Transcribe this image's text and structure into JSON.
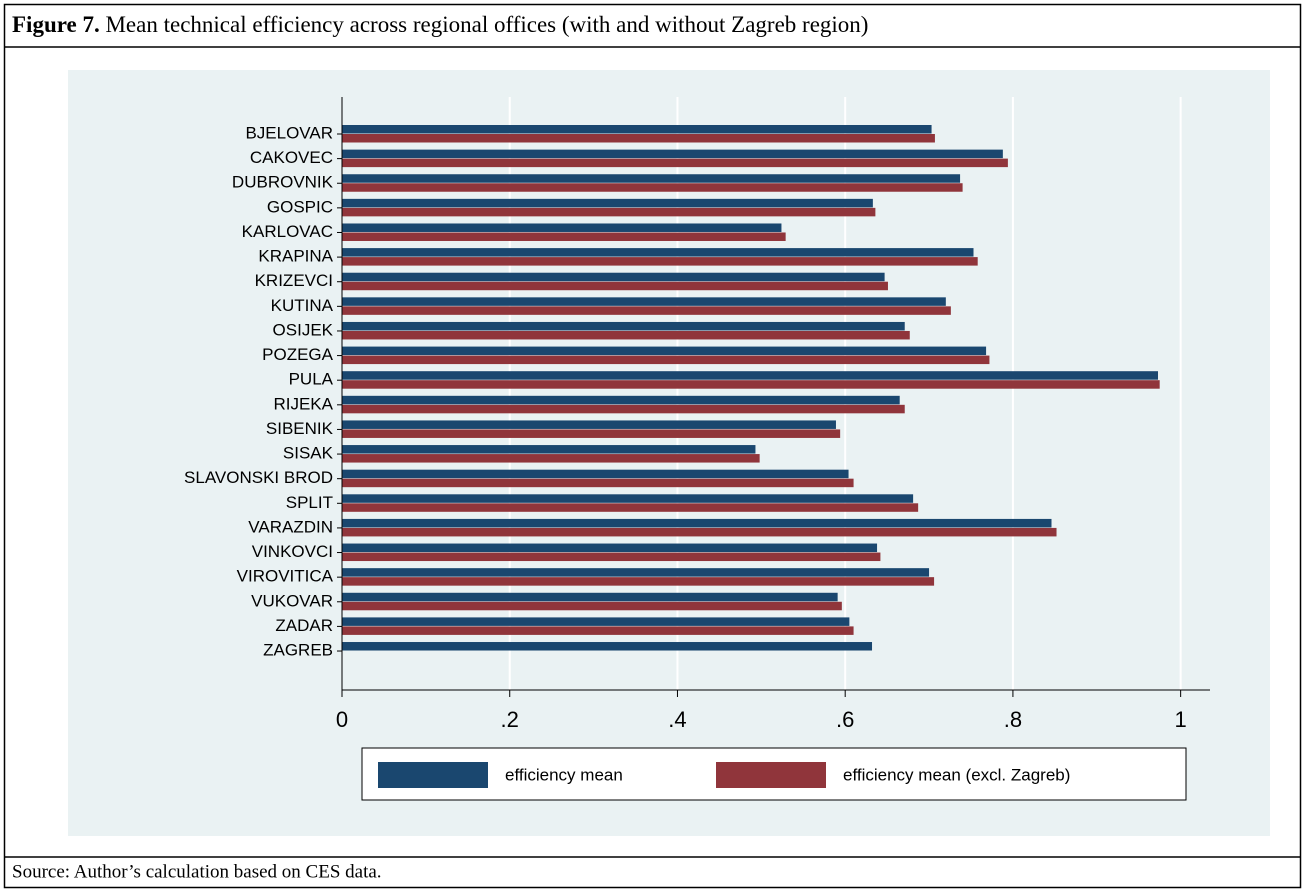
{
  "chart_data": {
    "type": "barh",
    "figure_label": "Figure 7.",
    "title": "Mean technical efficiency across regional offices (with and without Zagreb region)",
    "source": "Source: Author’s calculation based on CES data.",
    "categories": [
      "BJELOVAR",
      "CAKOVEC",
      "DUBROVNIK",
      "GOSPIC",
      "KARLOVAC",
      "KRAPINA",
      "KRIZEVCI",
      "KUTINA",
      "OSIJEK",
      "POZEGA",
      "PULA",
      "RIJEKA",
      "SIBENIK",
      "SISAK",
      "SLAVONSKI BROD",
      "SPLIT",
      "VARAZDIN",
      "VINKOVCI",
      "VIROVITICA",
      "VUKOVAR",
      "ZADAR",
      "ZAGREB"
    ],
    "series": [
      {
        "name": "efficiency mean",
        "color": "#1a476f",
        "values": [
          0.703,
          0.788,
          0.737,
          0.633,
          0.524,
          0.753,
          0.647,
          0.72,
          0.671,
          0.768,
          0.973,
          0.665,
          0.589,
          0.493,
          0.604,
          0.681,
          0.846,
          0.638,
          0.7,
          0.591,
          0.605,
          0.632
        ]
      },
      {
        "name": "efficiency mean (excl. Zagreb)",
        "color": "#90353b",
        "values": [
          0.707,
          0.794,
          0.74,
          0.636,
          0.529,
          0.758,
          0.651,
          0.726,
          0.677,
          0.772,
          0.975,
          0.671,
          0.594,
          0.498,
          0.61,
          0.687,
          0.852,
          0.642,
          0.706,
          0.596,
          0.61,
          null
        ]
      }
    ],
    "xlim": [
      0,
      1.035
    ],
    "xticks": [
      0,
      {
        "value": 0.2,
        "label": ".2"
      },
      {
        "value": 0.4,
        "label": ".4"
      },
      {
        "value": 0.6,
        "label": ".6"
      },
      {
        "value": 0.8,
        "label": ".8"
      },
      1
    ],
    "grid": true,
    "legend": "bottom"
  }
}
